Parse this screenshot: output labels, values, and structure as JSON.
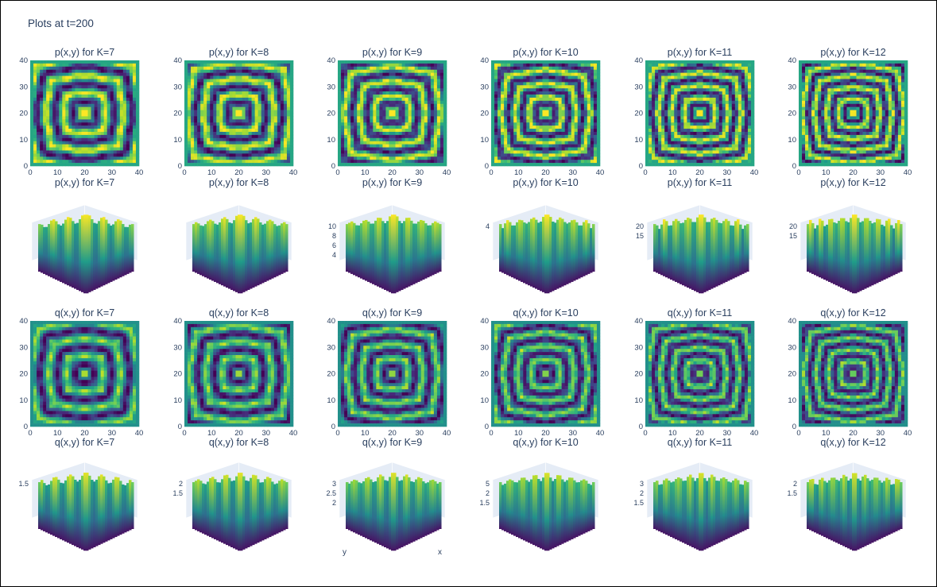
{
  "figure": {
    "title": "Plots at t=200"
  },
  "colorscale": {
    "name": "Viridis",
    "stops": [
      "#440154",
      "#482878",
      "#3e4989",
      "#31688e",
      "#26828e",
      "#1f9e89",
      "#35b779",
      "#6ece58",
      "#b5de2b",
      "#fde725"
    ]
  },
  "axis_color": "#2a3f5f",
  "chart_data": [
    {
      "type": "heatmap",
      "title": "p(x,y) for K=7",
      "field": "p",
      "K": 7,
      "xlim": [
        0,
        40
      ],
      "ylim": [
        0,
        40
      ],
      "xticks": [
        "0",
        "10",
        "20",
        "30",
        "40"
      ],
      "yticks": [
        "0",
        "10",
        "20",
        "30",
        "40"
      ]
    },
    {
      "type": "heatmap",
      "title": "p(x,y) for K=8",
      "field": "p",
      "K": 8,
      "xlim": [
        0,
        40
      ],
      "ylim": [
        0,
        40
      ],
      "xticks": [
        "0",
        "10",
        "20",
        "30",
        "40"
      ],
      "yticks": [
        "0",
        "10",
        "20",
        "30",
        "40"
      ]
    },
    {
      "type": "heatmap",
      "title": "p(x,y) for K=9",
      "field": "p",
      "K": 9,
      "xlim": [
        0,
        40
      ],
      "ylim": [
        0,
        40
      ],
      "xticks": [
        "0",
        "10",
        "20",
        "30",
        "40"
      ],
      "yticks": [
        "0",
        "10",
        "20",
        "30",
        "40"
      ]
    },
    {
      "type": "heatmap",
      "title": "p(x,y) for K=10",
      "field": "p",
      "K": 10,
      "xlim": [
        0,
        40
      ],
      "ylim": [
        0,
        40
      ],
      "xticks": [
        "0",
        "10",
        "20",
        "30",
        "40"
      ],
      "yticks": [
        "0",
        "10",
        "20",
        "30",
        "40"
      ]
    },
    {
      "type": "heatmap",
      "title": "p(x,y) for K=11",
      "field": "p",
      "K": 11,
      "xlim": [
        0,
        40
      ],
      "ylim": [
        0,
        40
      ],
      "xticks": [
        "0",
        "10",
        "20",
        "30",
        "40"
      ],
      "yticks": [
        "0",
        "10",
        "20",
        "30",
        "40"
      ]
    },
    {
      "type": "heatmap",
      "title": "p(x,y) for K=12",
      "field": "p",
      "K": 12,
      "xlim": [
        0,
        40
      ],
      "ylim": [
        0,
        40
      ],
      "xticks": [
        "0",
        "10",
        "20",
        "30",
        "40"
      ],
      "yticks": [
        "0",
        "10",
        "20",
        "30",
        "40"
      ]
    },
    {
      "type": "surface",
      "title": "p(x,y) for K=7",
      "field": "p",
      "K": 7,
      "zticks": []
    },
    {
      "type": "surface",
      "title": "p(x,y) for K=8",
      "field": "p",
      "K": 8,
      "zticks": []
    },
    {
      "type": "surface",
      "title": "p(x,y) for K=9",
      "field": "p",
      "K": 9,
      "zticks": [
        "10",
        "8",
        "6",
        "4"
      ]
    },
    {
      "type": "surface",
      "title": "p(x,y) for K=10",
      "field": "p",
      "K": 10,
      "zticks": [
        "4"
      ]
    },
    {
      "type": "surface",
      "title": "p(x,y) for K=11",
      "field": "p",
      "K": 11,
      "zticks": [
        "20",
        "15"
      ]
    },
    {
      "type": "surface",
      "title": "p(x,y) for K=12",
      "field": "p",
      "K": 12,
      "zticks": [
        "20",
        "15"
      ]
    },
    {
      "type": "heatmap",
      "title": "q(x,y) for K=7",
      "field": "q",
      "K": 7,
      "xlim": [
        0,
        40
      ],
      "ylim": [
        0,
        40
      ],
      "xticks": [
        "0",
        "10",
        "20",
        "30",
        "40"
      ],
      "yticks": [
        "0",
        "10",
        "20",
        "30",
        "40"
      ]
    },
    {
      "type": "heatmap",
      "title": "q(x,y) for K=8",
      "field": "q",
      "K": 8,
      "xlim": [
        0,
        40
      ],
      "ylim": [
        0,
        40
      ],
      "xticks": [
        "0",
        "10",
        "20",
        "30",
        "40"
      ],
      "yticks": [
        "0",
        "10",
        "20",
        "30",
        "40"
      ]
    },
    {
      "type": "heatmap",
      "title": "q(x,y) for K=9",
      "field": "q",
      "K": 9,
      "xlim": [
        0,
        40
      ],
      "ylim": [
        0,
        40
      ],
      "xticks": [
        "0",
        "10",
        "20",
        "30",
        "40"
      ],
      "yticks": [
        "0",
        "10",
        "20",
        "30",
        "40"
      ]
    },
    {
      "type": "heatmap",
      "title": "q(x,y) for K=10",
      "field": "q",
      "K": 10,
      "xlim": [
        0,
        40
      ],
      "ylim": [
        0,
        40
      ],
      "xticks": [
        "0",
        "10",
        "20",
        "30",
        "40"
      ],
      "yticks": [
        "0",
        "10",
        "20",
        "30",
        "40"
      ]
    },
    {
      "type": "heatmap",
      "title": "q(x,y) for K=11",
      "field": "q",
      "K": 11,
      "xlim": [
        0,
        40
      ],
      "ylim": [
        0,
        40
      ],
      "xticks": [
        "0",
        "10",
        "20",
        "30",
        "40"
      ],
      "yticks": [
        "0",
        "10",
        "20",
        "30",
        "40"
      ]
    },
    {
      "type": "heatmap",
      "title": "q(x,y) for K=12",
      "field": "q",
      "K": 12,
      "xlim": [
        0,
        40
      ],
      "ylim": [
        0,
        40
      ],
      "xticks": [
        "0",
        "10",
        "20",
        "30",
        "40"
      ],
      "yticks": [
        "0",
        "10",
        "20",
        "30",
        "40"
      ]
    },
    {
      "type": "surface",
      "title": "q(x,y) for K=7",
      "field": "q",
      "K": 7,
      "zticks": [
        "1.5"
      ]
    },
    {
      "type": "surface",
      "title": "q(x,y) for K=8",
      "field": "q",
      "K": 8,
      "zticks": [
        "2",
        "1.5"
      ]
    },
    {
      "type": "surface",
      "title": "q(x,y) for K=9",
      "field": "q",
      "K": 9,
      "zticks": [
        "3",
        "2.5",
        "2"
      ],
      "axis_labels": [
        "y",
        "x"
      ]
    },
    {
      "type": "surface",
      "title": "q(x,y) for K=10",
      "field": "q",
      "K": 10,
      "zticks": [
        "5",
        "2",
        "1.5"
      ]
    },
    {
      "type": "surface",
      "title": "q(x,y) for K=11",
      "field": "q",
      "K": 11,
      "zticks": [
        "3",
        "2",
        "1.5"
      ]
    },
    {
      "type": "surface",
      "title": "q(x,y) for K=12",
      "field": "q",
      "K": 12,
      "zticks": [
        "2",
        "1.5"
      ]
    }
  ]
}
